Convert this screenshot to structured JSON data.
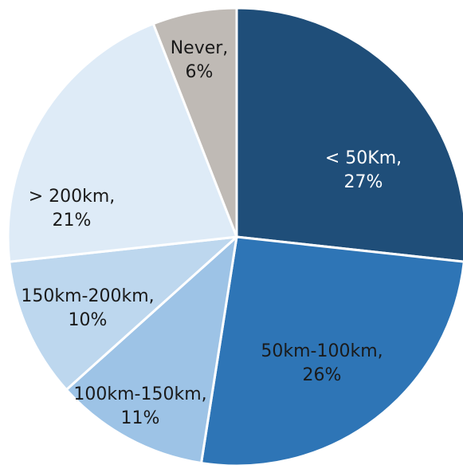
{
  "chart_data": {
    "type": "pie",
    "slices": [
      {
        "label": "< 50Km",
        "value": 27,
        "pct_label": "27%",
        "color": "#1f4e79",
        "text_color": "#ffffff"
      },
      {
        "label": "50km-100km",
        "value": 26,
        "pct_label": "26%",
        "color": "#2e75b6",
        "text_color": "#1a1a1a"
      },
      {
        "label": "100km-150km",
        "value": 11,
        "pct_label": "11%",
        "color": "#9dc3e6",
        "text_color": "#1a1a1a"
      },
      {
        "label": "150km-200km",
        "value": 10,
        "pct_label": "10%",
        "color": "#bdd7ee",
        "text_color": "#1a1a1a"
      },
      {
        "label": "> 200km",
        "value": 21,
        "pct_label": "21%",
        "color": "#deebf7",
        "text_color": "#1a1a1a"
      },
      {
        "label": "Never",
        "value": 6,
        "pct_label": "6%",
        "color": "#bfbab5",
        "text_color": "#1a1a1a"
      }
    ]
  }
}
